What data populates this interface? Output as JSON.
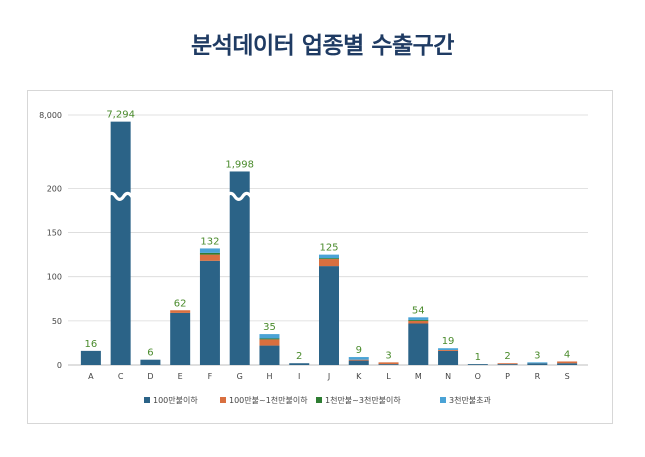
{
  "title": "분석데이터 업종별 수출구간",
  "colors": {
    "title": "#1f3b63",
    "series": [
      "#2b6387",
      "#d96f3f",
      "#2e7d32",
      "#4aa3d6"
    ],
    "value_label": "#4a8b2c",
    "axis_text": "#444444",
    "grid": "#d9d9d9"
  },
  "chart_data": {
    "type": "bar",
    "stacked": true,
    "broken_axis": true,
    "categories": [
      "A",
      "C",
      "D",
      "E",
      "F",
      "G",
      "H",
      "I",
      "J",
      "K",
      "L",
      "M",
      "N",
      "O",
      "P",
      "R",
      "S"
    ],
    "totals": [
      16,
      7294,
      6,
      62,
      132,
      1998,
      35,
      2,
      125,
      9,
      3,
      54,
      19,
      1,
      2,
      3,
      4
    ],
    "total_labels": [
      "16",
      "7,294",
      "6",
      "62",
      "132",
      "1,998",
      "35",
      "2",
      "125",
      "9",
      "3",
      "54",
      "19",
      "1",
      "2",
      "3",
      "4"
    ],
    "y_ticks": [
      "0",
      "50",
      "100",
      "150",
      "200",
      "8,000"
    ],
    "ylim": [
      0,
      8000
    ],
    "series": [
      {
        "name": "100만불이하",
        "values": [
          16,
          7294,
          6,
          59,
          118,
          1998,
          22,
          2,
          112,
          5,
          1,
          47,
          16,
          1,
          1,
          2,
          2
        ]
      },
      {
        "name": "100만불~1천만불이하",
        "values": [
          0,
          0,
          0,
          3,
          7,
          0,
          7,
          0,
          8,
          1,
          2,
          3,
          1,
          0,
          1,
          0,
          2
        ]
      },
      {
        "name": "1천만불~3천만불이하",
        "values": [
          0,
          0,
          0,
          0,
          2,
          0,
          1,
          0,
          1,
          0,
          0,
          1,
          0,
          0,
          0,
          0,
          0
        ]
      },
      {
        "name": "3천만불초과",
        "values": [
          0,
          0,
          0,
          0,
          5,
          0,
          5,
          0,
          4,
          3,
          0,
          3,
          2,
          0,
          0,
          1,
          0
        ]
      }
    ],
    "legend_position": "bottom"
  }
}
